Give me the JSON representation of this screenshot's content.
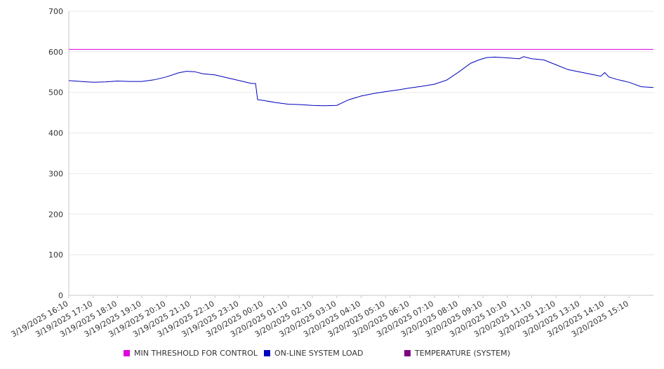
{
  "chart_data": {
    "type": "line",
    "title": "",
    "xlabel": "",
    "ylabel": "",
    "ylim": [
      0,
      700
    ],
    "y_ticks": [
      0,
      100,
      200,
      300,
      400,
      500,
      600,
      700
    ],
    "grid": "horizontal",
    "legend_position": "bottom",
    "x_tick_labels": [
      "3/19/2025 16:10",
      "3/19/2025 17:10",
      "3/19/2025 18:10",
      "3/19/2025 19:10",
      "3/19/2025 20:10",
      "3/19/2025 21:10",
      "3/19/2025 22:10",
      "3/19/2025 23:10",
      "3/20/2025 00:10",
      "3/20/2025 01:10",
      "3/20/2025 02:10",
      "3/20/2025 03:10",
      "3/20/2025 04:10",
      "3/20/2025 05:10",
      "3/20/2025 06:10",
      "3/20/2025 07:10",
      "3/20/2025 08:10",
      "3/20/2025 09:10",
      "3/20/2025 10:10",
      "3/20/2025 11:10",
      "3/20/2025 12:10",
      "3/20/2025 13:10",
      "3/20/2025 14:10",
      "3/20/2025 15:10"
    ],
    "x_start": "3/19/2025 16:10",
    "x_end": "3/20/2025 16:10",
    "series": [
      {
        "name": "MIN THRESHOLD FOR CONTROL",
        "color": "#e000e0",
        "points": [
          [
            "3/19/2025 16:10",
            606
          ],
          [
            "3/20/2025 16:10",
            606
          ]
        ]
      },
      {
        "name": "ON-LINE SYSTEM LOAD",
        "color": "#0000c0",
        "points": [
          [
            "3/19/2025 16:10",
            529
          ],
          [
            "3/19/2025 16:40",
            527
          ],
          [
            "3/19/2025 17:10",
            525
          ],
          [
            "3/19/2025 17:40",
            526
          ],
          [
            "3/19/2025 18:10",
            528
          ],
          [
            "3/19/2025 18:40",
            527
          ],
          [
            "3/19/2025 19:10",
            527
          ],
          [
            "3/19/2025 19:40",
            531
          ],
          [
            "3/19/2025 20:10",
            538
          ],
          [
            "3/19/2025 20:40",
            548
          ],
          [
            "3/19/2025 21:00",
            552
          ],
          [
            "3/19/2025 21:20",
            551
          ],
          [
            "3/19/2025 21:40",
            546
          ],
          [
            "3/19/2025 22:10",
            543
          ],
          [
            "3/19/2025 22:40",
            536
          ],
          [
            "3/19/2025 23:10",
            529
          ],
          [
            "3/19/2025 23:40",
            522
          ],
          [
            "3/19/2025 23:50",
            522
          ],
          [
            "3/19/2025 23:55",
            482
          ],
          [
            "3/20/2025 00:10",
            480
          ],
          [
            "3/20/2025 00:40",
            475
          ],
          [
            "3/20/2025 01:10",
            471
          ],
          [
            "3/20/2025 01:40",
            470
          ],
          [
            "3/20/2025 02:10",
            468
          ],
          [
            "3/20/2025 02:40",
            467
          ],
          [
            "3/20/2025 03:10",
            468
          ],
          [
            "3/20/2025 03:40",
            482
          ],
          [
            "3/20/2025 04:10",
            491
          ],
          [
            "3/20/2025 04:40",
            497
          ],
          [
            "3/20/2025 05:10",
            502
          ],
          [
            "3/20/2025 05:40",
            506
          ],
          [
            "3/20/2025 06:10",
            511
          ],
          [
            "3/20/2025 06:40",
            515
          ],
          [
            "3/20/2025 07:10",
            520
          ],
          [
            "3/20/2025 07:40",
            530
          ],
          [
            "3/20/2025 08:10",
            550
          ],
          [
            "3/20/2025 08:40",
            572
          ],
          [
            "3/20/2025 09:00",
            580
          ],
          [
            "3/20/2025 09:20",
            586
          ],
          [
            "3/20/2025 09:40",
            587
          ],
          [
            "3/20/2025 10:10",
            585
          ],
          [
            "3/20/2025 10:40",
            583
          ],
          [
            "3/20/2025 10:50",
            588
          ],
          [
            "3/20/2025 11:10",
            583
          ],
          [
            "3/20/2025 11:40",
            580
          ],
          [
            "3/20/2025 12:10",
            568
          ],
          [
            "3/20/2025 12:40",
            556
          ],
          [
            "3/20/2025 13:10",
            550
          ],
          [
            "3/20/2025 13:40",
            544
          ],
          [
            "3/20/2025 14:00",
            540
          ],
          [
            "3/20/2025 14:10",
            549
          ],
          [
            "3/20/2025 14:20",
            538
          ],
          [
            "3/20/2025 14:40",
            532
          ],
          [
            "3/20/2025 15:10",
            525
          ],
          [
            "3/20/2025 15:40",
            514
          ],
          [
            "3/20/2025 16:10",
            512
          ]
        ]
      },
      {
        "name": "TEMPERATURE (SYSTEM)",
        "color": "#800080",
        "points": []
      }
    ]
  },
  "legend": {
    "items": [
      {
        "label": "MIN THRESHOLD FOR CONTROL",
        "color": "#e000e0"
      },
      {
        "label": "ON-LINE SYSTEM LOAD",
        "color": "#0000c0"
      },
      {
        "label": "TEMPERATURE (SYSTEM)",
        "color": "#800080"
      }
    ]
  }
}
